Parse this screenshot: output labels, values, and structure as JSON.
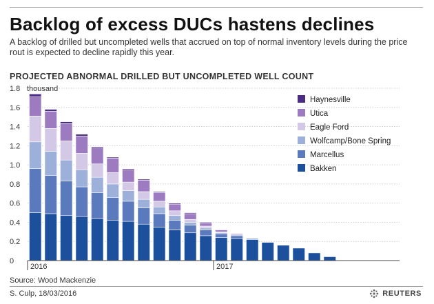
{
  "headline": "Backlog of excess DUCs hastens declines",
  "subtitle": "A backlog of drilled but uncompleted wells that accrued on top of normal inventory levels during the price rout is expected to decline rapidly this year.",
  "source": "Source: Wood Mackenzie",
  "credit": "S. Culp, 18/03/2016",
  "brand": "REUTERS",
  "colors": {
    "Bakken": "#1c4f9c",
    "Marcellus": "#5b79bd",
    "Wolfcamp/Bone Spring": "#9cb0da",
    "Eagle Ford": "#d3c9e6",
    "Utica": "#9c7bc0",
    "Haynesville": "#4b2d84"
  },
  "chart_data": {
    "type": "bar",
    "stacked": true,
    "title": "PROJECTED ABNORMAL DRILLED BUT UNCOMPLETED WELL COUNT",
    "ylabel": "thousand",
    "ylim": [
      0,
      1.8
    ],
    "yticks": [
      0,
      0.2,
      0.4,
      0.6,
      0.8,
      1.0,
      1.2,
      1.4,
      1.6,
      1.8
    ],
    "ytick_labels": [
      "0",
      "0.2",
      "0.4",
      "0.6",
      "0.8",
      "1.0",
      "1.2",
      "1.4",
      "1.6",
      "1.8"
    ],
    "x_period_labels": [
      {
        "label": "2016",
        "index": 0
      },
      {
        "label": "2017",
        "index": 12
      }
    ],
    "grid": true,
    "legend_position": "right",
    "legend_order": [
      "Haynesville",
      "Utica",
      "Eagle Ford",
      "Wolfcamp/Bone Spring",
      "Marcellus",
      "Bakken"
    ],
    "categories": [
      "1",
      "2",
      "3",
      "4",
      "5",
      "6",
      "7",
      "8",
      "9",
      "10",
      "11",
      "12",
      "13",
      "14",
      "15",
      "16",
      "17",
      "18",
      "19",
      "20",
      "21",
      "22",
      "23",
      "24"
    ],
    "series": [
      {
        "name": "Bakken",
        "values": [
          0.5,
          0.49,
          0.47,
          0.46,
          0.44,
          0.42,
          0.41,
          0.38,
          0.35,
          0.32,
          0.29,
          0.26,
          0.24,
          0.23,
          0.22,
          0.19,
          0.16,
          0.13,
          0.08,
          0.04,
          0,
          0,
          0,
          0
        ]
      },
      {
        "name": "Marcellus",
        "values": [
          0.46,
          0.4,
          0.36,
          0.31,
          0.27,
          0.24,
          0.21,
          0.17,
          0.14,
          0.1,
          0.08,
          0.06,
          0.04,
          0.03,
          0.01,
          0,
          0,
          0,
          0,
          0,
          0,
          0,
          0,
          0
        ]
      },
      {
        "name": "Wolfcamp/Bone Spring",
        "values": [
          0.28,
          0.25,
          0.22,
          0.18,
          0.16,
          0.14,
          0.11,
          0.09,
          0.07,
          0.05,
          0.03,
          0.02,
          0.01,
          0.01,
          0,
          0,
          0,
          0,
          0,
          0,
          0,
          0,
          0,
          0
        ]
      },
      {
        "name": "Eagle Ford",
        "values": [
          0.27,
          0.24,
          0.2,
          0.17,
          0.14,
          0.12,
          0.09,
          0.08,
          0.06,
          0.05,
          0.03,
          0.02,
          0.01,
          0,
          0,
          0,
          0,
          0,
          0,
          0,
          0,
          0,
          0,
          0
        ]
      },
      {
        "name": "Utica",
        "values": [
          0.2,
          0.18,
          0.18,
          0.18,
          0.17,
          0.15,
          0.13,
          0.12,
          0.09,
          0.07,
          0.06,
          0.03,
          0.02,
          0.01,
          0,
          0,
          0,
          0,
          0,
          0,
          0,
          0,
          0,
          0
        ]
      },
      {
        "name": "Haynesville",
        "values": [
          0.03,
          0.02,
          0.02,
          0.02,
          0.01,
          0.01,
          0.01,
          0.01,
          0.01,
          0.01,
          0.01,
          0.01,
          0,
          0,
          0,
          0,
          0,
          0,
          0,
          0,
          0,
          0,
          0,
          0
        ]
      }
    ]
  }
}
